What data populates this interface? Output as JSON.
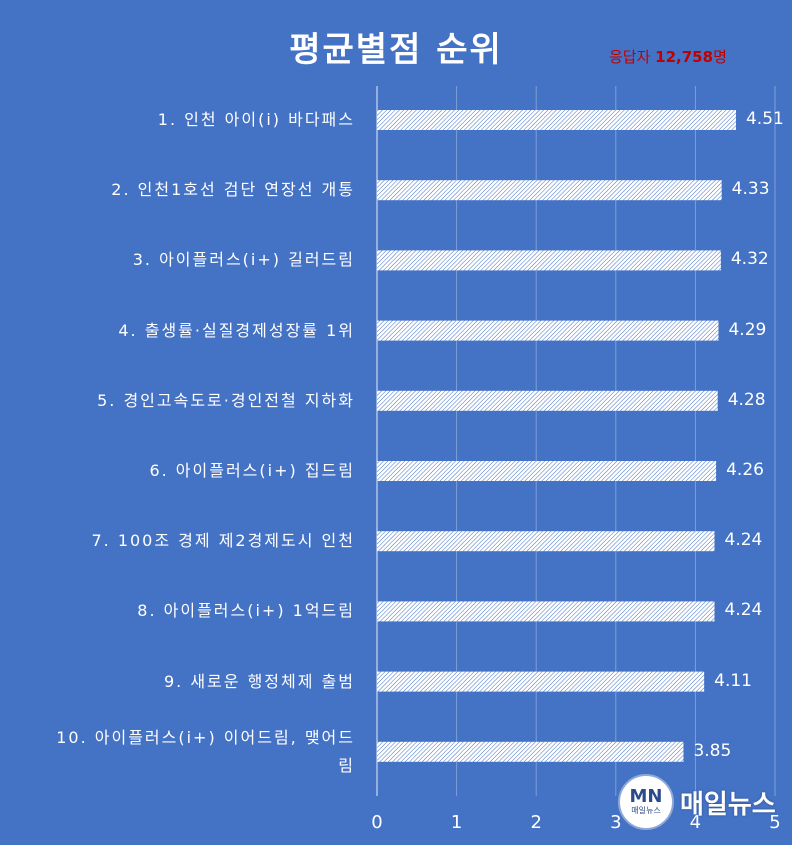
{
  "title": "평균별점 순위",
  "respondents": {
    "prefix": "응답자 ",
    "count": "12,758",
    "suffix": "명"
  },
  "logo": {
    "mark": "MN",
    "small": "매일뉴스",
    "text": "매일뉴스"
  },
  "colors": {
    "background": "#4472c4",
    "bar_hatch": "#ffffff",
    "respondents_text": "#c00000",
    "text": "#ffffff"
  },
  "chart_data": {
    "type": "bar",
    "orientation": "horizontal",
    "title": "평균별점 순위",
    "categories": [
      "1. 인천 아이(i) 바다패스",
      "2. 인천1호선 검단 연장선 개통",
      "3. 아이플러스(i+) 길러드림",
      "4. 출생률·실질경제성장률 1위",
      "5. 경인고속도로·경인전철 지하화",
      "6. 아이플러스(i+) 집드림",
      "7. 100조 경제 제2경제도시 인천",
      "8. 아이플러스(i+) 1억드림",
      "9. 새로운 행정체제 출범",
      "10. 아이플러스(i+) 이어드림, 맺어드림"
    ],
    "values": [
      4.51,
      4.33,
      4.32,
      4.29,
      4.28,
      4.26,
      4.24,
      4.24,
      4.11,
      3.85
    ],
    "value_labels": [
      "4.51",
      "4.33",
      "4.32",
      "4.29",
      "4.28",
      "4.26",
      "4.24",
      "4.24",
      "4.11",
      "3.85"
    ],
    "xlim": [
      0,
      5
    ],
    "xticks": [
      "0",
      "1",
      "2",
      "3",
      "4",
      "5"
    ],
    "grid": true,
    "xlabel": "",
    "ylabel": ""
  }
}
